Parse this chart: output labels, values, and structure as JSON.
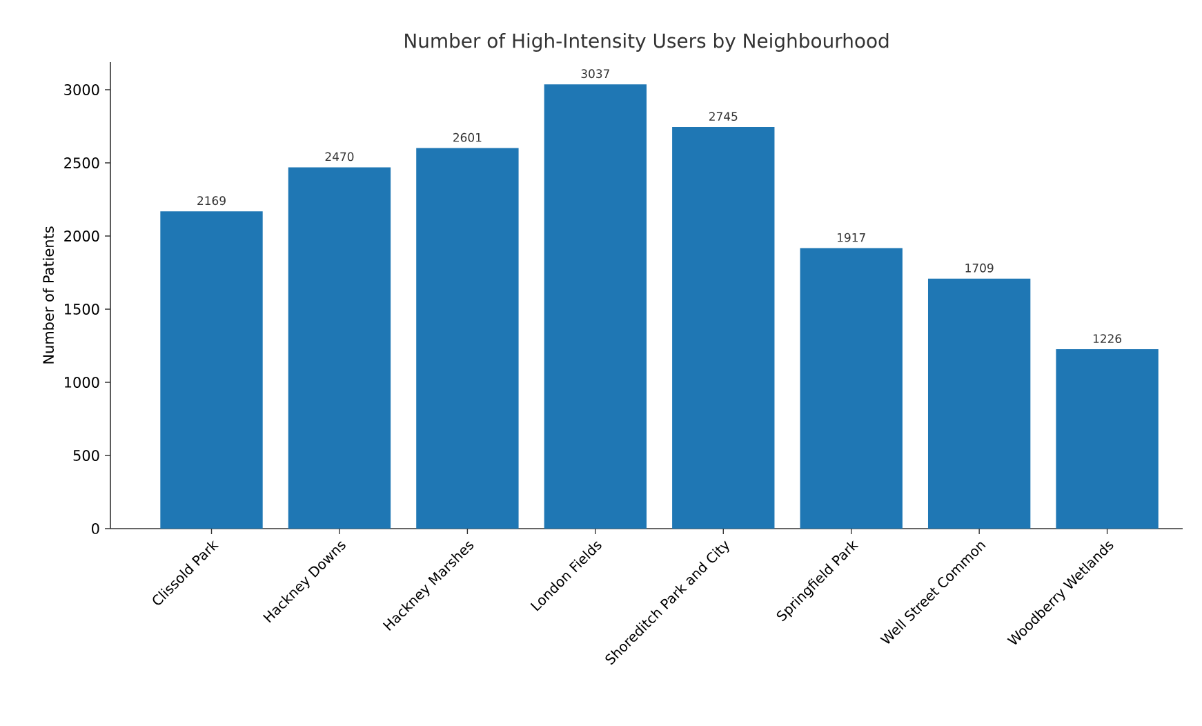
{
  "chart_data": {
    "type": "bar",
    "title": "Number of High-Intensity Users by Neighbourhood",
    "ylabel": "Number of Patients",
    "categories": [
      "Clissold Park",
      "Hackney Downs",
      "Hackney Marshes",
      "London Fields",
      "Shoreditch Park and City",
      "Springfield Park",
      "Well Street Common",
      "Woodberry Wetlands"
    ],
    "values": [
      2169,
      2470,
      2601,
      3037,
      2745,
      1917,
      1709,
      1226
    ],
    "color": "#1f77b4",
    "data_labels": true,
    "ylim": [
      0,
      3189
    ],
    "yticks": [
      0,
      500,
      1000,
      1500,
      2000,
      2500,
      3000
    ]
  }
}
